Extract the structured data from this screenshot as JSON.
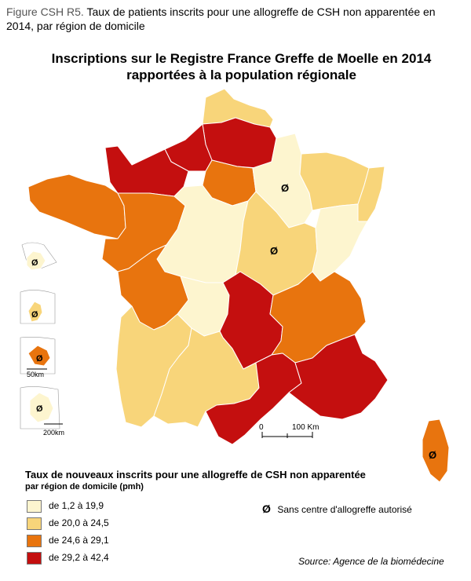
{
  "caption": {
    "label": "Figure CSH R5.",
    "text": "Taux de patients inscrits pour une allogreffe de CSH non apparentée en 2014, par région de domicile"
  },
  "map": {
    "title_line1": "Inscriptions sur le Registre France Greffe de Moelle en 2014",
    "title_line2": "rapportées à la population régionale",
    "scale_zero": "0",
    "scale_label": "100 Km",
    "inset_scale_guadeloupe": "50km",
    "inset_scale_guyane": "200km",
    "no_centre_symbol": "Ø"
  },
  "legend": {
    "title": "Taux de nouveaux inscrits pour une allogreffe de CSH non apparentée",
    "subtitle": "par région de domicile (pmh)",
    "classes": [
      {
        "label": "de 1,2 à 19,9",
        "color": "#fdf5cf"
      },
      {
        "label": "de 20,0 à 24,5",
        "color": "#f8d57a"
      },
      {
        "label": "de 24,6 à 29,1",
        "color": "#e8740e"
      },
      {
        "label": "de 29,2 à 42,4",
        "color": "#c40f0f"
      }
    ],
    "no_centre_label": "Sans centre d'allogreffe autorisé"
  },
  "regions": [
    {
      "name": "Nord-Pas-de-Calais",
      "class": 1
    },
    {
      "name": "Picardie",
      "class": 3
    },
    {
      "name": "Haute-Normandie",
      "class": 3
    },
    {
      "name": "Basse-Normandie",
      "class": 3
    },
    {
      "name": "Bretagne",
      "class": 2
    },
    {
      "name": "Île-de-France",
      "class": 2
    },
    {
      "name": "Champagne-Ardenne",
      "class": 0,
      "no_centre": true
    },
    {
      "name": "Lorraine",
      "class": 1
    },
    {
      "name": "Alsace",
      "class": 1
    },
    {
      "name": "Pays de la Loire",
      "class": 2
    },
    {
      "name": "Centre",
      "class": 0
    },
    {
      "name": "Bourgogne",
      "class": 1,
      "no_centre": true
    },
    {
      "name": "Franche-Comté",
      "class": 0
    },
    {
      "name": "Poitou-Charentes",
      "class": 2
    },
    {
      "name": "Limousin",
      "class": 0
    },
    {
      "name": "Auvergne",
      "class": 3
    },
    {
      "name": "Rhône-Alpes",
      "class": 2
    },
    {
      "name": "Aquitaine",
      "class": 1
    },
    {
      "name": "Midi-Pyrénées",
      "class": 1
    },
    {
      "name": "Languedoc-Roussillon",
      "class": 3
    },
    {
      "name": "Provence-Alpes-Côte d'Azur",
      "class": 3
    },
    {
      "name": "Corse",
      "class": 2,
      "no_centre": true
    },
    {
      "name": "La Réunion",
      "class": 0,
      "no_centre": true
    },
    {
      "name": "Guadeloupe",
      "class": 1,
      "no_centre": true
    },
    {
      "name": "Martinique",
      "class": 2,
      "no_centre": true
    },
    {
      "name": "Guyane",
      "class": 0,
      "no_centre": true
    }
  ],
  "source": "Source: Agence de la biomédecine"
}
